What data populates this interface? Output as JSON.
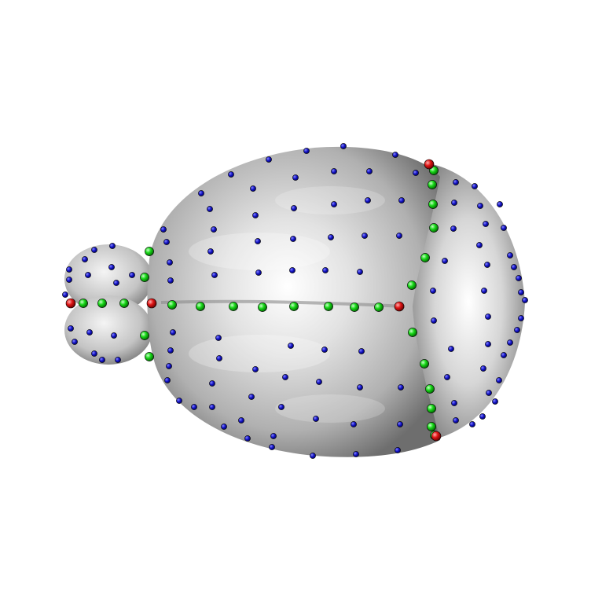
{
  "scene": {
    "background": "#ffffff",
    "surface_color": "#c8c8c8",
    "surface_highlight": "#ffffff",
    "surface_shadow": "#5e5e5e",
    "landmark_colors": {
      "semilandmark": "#1010c8",
      "curve": "#10d010",
      "fixed": "#e01010"
    }
  }
}
